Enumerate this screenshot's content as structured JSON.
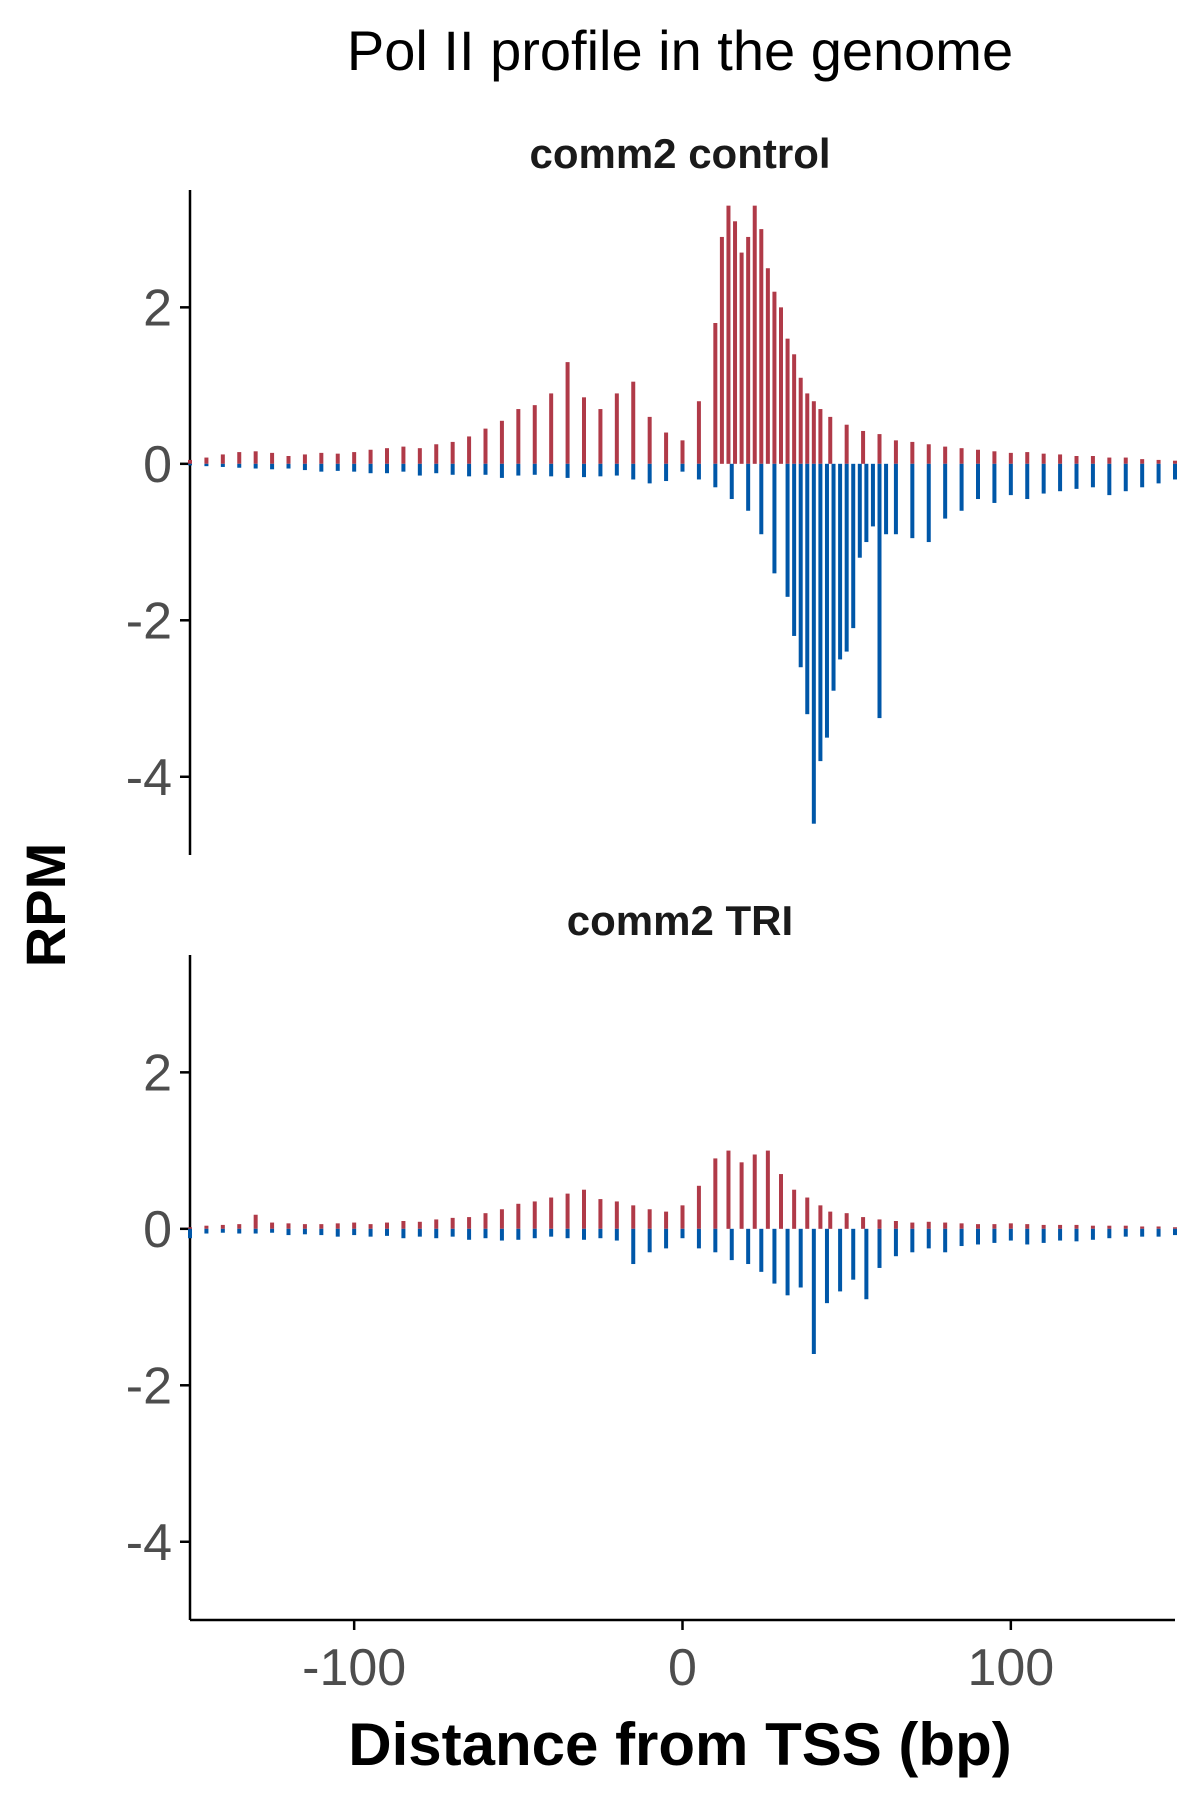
{
  "chart_data": {
    "type": "bar",
    "title": "Pol II profile in the genome",
    "xlabel": "Distance from TSS (bp)",
    "ylabel": "RPM",
    "xlim": [
      -150,
      150
    ],
    "ylim": [
      -5,
      3.5
    ],
    "x_ticks": [
      -100,
      0,
      100
    ],
    "x_tick_labels": [
      "-100",
      "0",
      "100"
    ],
    "y_ticks": [
      2,
      0,
      -2,
      -4
    ],
    "y_tick_labels": [
      "2",
      "0",
      "-2",
      "-4"
    ],
    "grid": false,
    "legend": "none",
    "colors": {
      "positive_strand": "#b03a48",
      "negative_strand": "#0057a8",
      "axis": "#000000",
      "tick_label": "#4d4d4d"
    },
    "panels": [
      {
        "label": "comm2 control",
        "series": [
          {
            "color": "#b03a48",
            "x": [
              -150,
              -145,
              -140,
              -135,
              -130,
              -125,
              -120,
              -115,
              -110,
              -105,
              -100,
              -95,
              -90,
              -85,
              -80,
              -75,
              -70,
              -65,
              -60,
              -55,
              -50,
              -45,
              -40,
              -35,
              -30,
              -25,
              -20,
              -15,
              -10,
              -5,
              0,
              5,
              10,
              12,
              14,
              16,
              18,
              20,
              22,
              24,
              26,
              28,
              30,
              32,
              34,
              36,
              38,
              40,
              42,
              45,
              50,
              55,
              60,
              65,
              70,
              75,
              80,
              85,
              90,
              95,
              100,
              105,
              110,
              115,
              120,
              125,
              130,
              135,
              140,
              145,
              150
            ],
            "values": [
              0.05,
              0.08,
              0.12,
              0.15,
              0.16,
              0.14,
              0.1,
              0.12,
              0.14,
              0.13,
              0.15,
              0.18,
              0.2,
              0.22,
              0.2,
              0.25,
              0.28,
              0.35,
              0.45,
              0.55,
              0.7,
              0.75,
              0.9,
              1.3,
              0.85,
              0.7,
              0.9,
              1.05,
              0.6,
              0.4,
              0.3,
              0.8,
              1.8,
              2.9,
              3.3,
              3.1,
              2.7,
              2.9,
              3.3,
              3.0,
              2.5,
              2.2,
              2.0,
              1.6,
              1.4,
              1.1,
              0.9,
              0.8,
              0.7,
              0.6,
              0.5,
              0.42,
              0.38,
              0.3,
              0.28,
              0.25,
              0.22,
              0.2,
              0.18,
              0.16,
              0.14,
              0.15,
              0.13,
              0.12,
              0.1,
              0.1,
              0.08,
              0.08,
              0.06,
              0.05,
              0.04
            ]
          },
          {
            "color": "#0057a8",
            "x": [
              -150,
              -145,
              -140,
              -135,
              -130,
              -125,
              -120,
              -115,
              -110,
              -105,
              -100,
              -95,
              -90,
              -85,
              -80,
              -75,
              -70,
              -65,
              -60,
              -55,
              -50,
              -45,
              -40,
              -35,
              -30,
              -25,
              -20,
              -15,
              -10,
              -5,
              0,
              5,
              10,
              15,
              20,
              24,
              28,
              32,
              34,
              36,
              38,
              40,
              42,
              44,
              46,
              48,
              50,
              52,
              54,
              56,
              58,
              60,
              62,
              65,
              70,
              75,
              80,
              85,
              90,
              95,
              100,
              105,
              110,
              115,
              120,
              125,
              130,
              135,
              140,
              145,
              150
            ],
            "values": [
              -0.02,
              -0.03,
              -0.04,
              -0.05,
              -0.06,
              -0.07,
              -0.06,
              -0.08,
              -0.1,
              -0.09,
              -0.1,
              -0.12,
              -0.12,
              -0.1,
              -0.15,
              -0.12,
              -0.14,
              -0.16,
              -0.14,
              -0.18,
              -0.15,
              -0.14,
              -0.16,
              -0.18,
              -0.17,
              -0.16,
              -0.15,
              -0.2,
              -0.25,
              -0.22,
              -0.1,
              -0.2,
              -0.3,
              -0.45,
              -0.6,
              -0.9,
              -1.4,
              -1.7,
              -2.2,
              -2.6,
              -3.2,
              -4.6,
              -3.8,
              -3.5,
              -2.9,
              -2.5,
              -2.4,
              -2.1,
              -1.2,
              -1.0,
              -0.8,
              -3.25,
              -0.9,
              -0.9,
              -0.95,
              -1.0,
              -0.7,
              -0.6,
              -0.45,
              -0.5,
              -0.4,
              -0.45,
              -0.38,
              -0.35,
              -0.32,
              -0.3,
              -0.4,
              -0.35,
              -0.3,
              -0.25,
              -0.2
            ]
          }
        ]
      },
      {
        "label": "comm2 TRI",
        "series": [
          {
            "color": "#b03a48",
            "x": [
              -150,
              -145,
              -140,
              -135,
              -130,
              -125,
              -120,
              -115,
              -110,
              -105,
              -100,
              -95,
              -90,
              -85,
              -80,
              -75,
              -70,
              -65,
              -60,
              -55,
              -50,
              -45,
              -40,
              -35,
              -30,
              -25,
              -20,
              -15,
              -10,
              -5,
              0,
              5,
              10,
              14,
              18,
              22,
              26,
              30,
              34,
              38,
              42,
              45,
              50,
              55,
              60,
              65,
              70,
              75,
              80,
              85,
              90,
              95,
              100,
              105,
              110,
              115,
              120,
              125,
              130,
              135,
              140,
              145,
              150
            ],
            "values": [
              0.02,
              0.04,
              0.05,
              0.06,
              0.18,
              0.08,
              0.07,
              0.06,
              0.06,
              0.07,
              0.08,
              0.06,
              0.08,
              0.1,
              0.09,
              0.12,
              0.14,
              0.15,
              0.2,
              0.25,
              0.32,
              0.35,
              0.4,
              0.45,
              0.5,
              0.38,
              0.35,
              0.3,
              0.25,
              0.22,
              0.3,
              0.55,
              0.9,
              1.0,
              0.85,
              0.95,
              1.0,
              0.7,
              0.5,
              0.4,
              0.3,
              0.22,
              0.2,
              0.15,
              0.12,
              0.1,
              0.08,
              0.09,
              0.08,
              0.07,
              0.06,
              0.06,
              0.07,
              0.06,
              0.05,
              0.05,
              0.05,
              0.04,
              0.04,
              0.04,
              0.03,
              0.03,
              0.02
            ]
          },
          {
            "color": "#0057a8",
            "x": [
              -150,
              -145,
              -140,
              -135,
              -130,
              -125,
              -120,
              -115,
              -110,
              -105,
              -100,
              -95,
              -90,
              -85,
              -80,
              -75,
              -70,
              -65,
              -60,
              -55,
              -50,
              -45,
              -40,
              -35,
              -30,
              -25,
              -20,
              -15,
              -10,
              -5,
              0,
              5,
              10,
              15,
              20,
              24,
              28,
              32,
              36,
              40,
              44,
              48,
              52,
              56,
              60,
              65,
              70,
              75,
              80,
              85,
              90,
              95,
              100,
              105,
              110,
              115,
              120,
              125,
              130,
              135,
              140,
              145,
              150
            ],
            "values": [
              -0.12,
              -0.06,
              -0.05,
              -0.06,
              -0.06,
              -0.05,
              -0.08,
              -0.07,
              -0.08,
              -0.1,
              -0.08,
              -0.1,
              -0.09,
              -0.12,
              -0.1,
              -0.12,
              -0.1,
              -0.14,
              -0.12,
              -0.15,
              -0.14,
              -0.12,
              -0.1,
              -0.12,
              -0.14,
              -0.12,
              -0.15,
              -0.45,
              -0.3,
              -0.25,
              -0.12,
              -0.25,
              -0.3,
              -0.4,
              -0.45,
              -0.55,
              -0.7,
              -0.85,
              -0.75,
              -1.6,
              -0.95,
              -0.8,
              -0.65,
              -0.9,
              -0.5,
              -0.35,
              -0.3,
              -0.25,
              -0.3,
              -0.22,
              -0.2,
              -0.18,
              -0.15,
              -0.2,
              -0.18,
              -0.15,
              -0.16,
              -0.14,
              -0.12,
              -0.1,
              -0.1,
              -0.1,
              -0.08
            ]
          }
        ]
      }
    ]
  }
}
